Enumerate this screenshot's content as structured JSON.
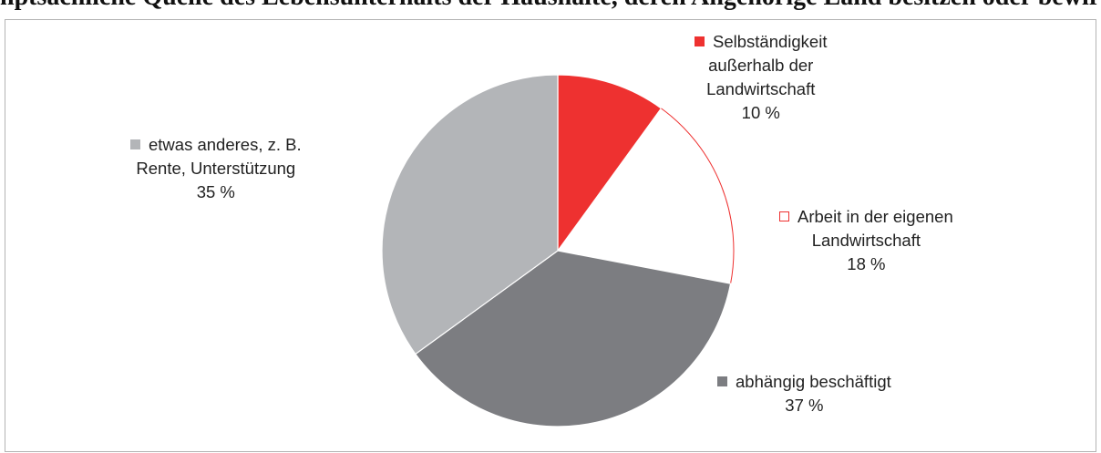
{
  "header_text": "nptsächliche Quelle des Lebensunterhalts der Haushalte, deren Angehörige Land besitzen oder bewirtschaften; in Prozent der Haushalte in der Region",
  "chart_data": {
    "type": "pie",
    "title": "",
    "start_angle_deg": 0,
    "direction": "clockwise",
    "slices": [
      {
        "label_lines": [
          "Selbständigkeit",
          "außerhalb der",
          "Landwirtschaft"
        ],
        "value": 10,
        "value_label": "10 %",
        "color": "#ee3130",
        "stroke": "#ee3130"
      },
      {
        "label_lines": [
          "Arbeit in der eigenen",
          "Landwirtschaft"
        ],
        "value": 18,
        "value_label": "18 %",
        "color": "#ffffff",
        "stroke": "#ee3130"
      },
      {
        "label_lines": [
          "abhängig beschäftigt"
        ],
        "value": 37,
        "value_label": "37 %",
        "color": "#7c7d81",
        "stroke": "#7c7d81"
      },
      {
        "label_lines": [
          "etwas anderes, z. B.",
          "Rente, Unterstützung"
        ],
        "value": 35,
        "value_label": "35 %",
        "color": "#b3b5b8",
        "stroke": "#b3b5b8"
      }
    ]
  }
}
